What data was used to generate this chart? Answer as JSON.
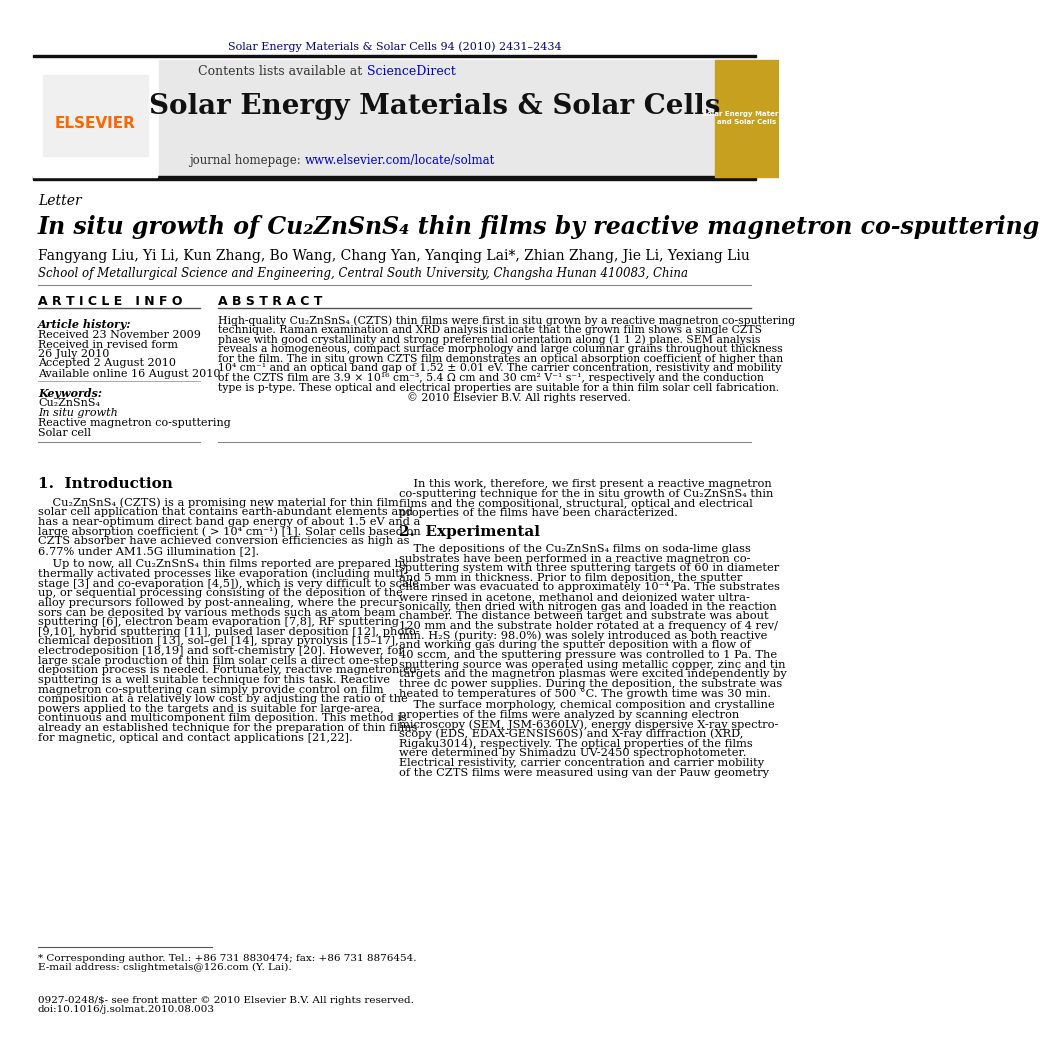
{
  "page_bg": "#ffffff",
  "top_journal_ref": "Solar Energy Materials & Solar Cells 94 (2010) 2431–2434",
  "top_journal_ref_color": "#00008B",
  "header_bg": "#e8e8e8",
  "journal_name": "Solar Energy Materials & Solar Cells",
  "journal_url_color": "#0000CD",
  "letter_label": "Letter",
  "article_title": "In situ growth of Cu₂ZnSnS₄ thin films by reactive magnetron co-sputtering",
  "authors": "Fangyang Liu, Yi Li, Kun Zhang, Bo Wang, Chang Yan, Yanqing Lai*, Zhian Zhang, Jie Li, Yexiang Liu",
  "affiliation": "School of Metallurgical Science and Engineering, Central South University, Changsha Hunan 410083, China",
  "article_info_header": "A R T I C L E   I N F O",
  "abstract_header": "A B S T R A C T",
  "article_history_label": "Article history:",
  "received": "Received 23 November 2009",
  "received_revised": "Received in revised form",
  "revised_date": "26 July 2010",
  "accepted": "Accepted 2 August 2010",
  "available": "Available online 16 August 2010",
  "keywords_label": "Keywords:",
  "keyword1": "Cu₂ZnSnS₄",
  "keyword2": "In situ growth",
  "keyword3": "Reactive magnetron co-sputtering",
  "keyword4": "Solar cell",
  "intro_header": "1.  Introduction",
  "experimental_header": "2.  Experimental",
  "elsevier_color": "#FF6600",
  "link_color": "#0000CD",
  "abstract_lines": [
    "High-quality Cu₂ZnSnS₄ (CZTS) thin films were first in situ grown by a reactive magnetron co-sputtering",
    "technique. Raman examination and XRD analysis indicate that the grown film shows a single CZTS",
    "phase with good crystallinity and strong preferential orientation along (1 1 2) plane. SEM analysis",
    "reveals a homogeneous, compact surface morphology and large columnar grains throughout thickness",
    "for the film. The in situ grown CZTS film demonstrates an optical absorption coefficient of higher than",
    "10⁴ cm⁻¹ and an optical band gap of 1.52 ± 0.01 eV. The carrier concentration, resistivity and mobility",
    "of the CZTS film are 3.9 × 10¹⁶ cm⁻³, 5.4 Ω cm and 30 cm² V⁻¹ s⁻¹, respectively and the conduction",
    "type is p-type. These optical and electrical properties are suitable for a thin film solar cell fabrication.",
    "                                                      © 2010 Elsevier B.V. All rights reserved."
  ],
  "intro1_lines": [
    "    Cu₂ZnSnS₄ (CZTS) is a promising new material for thin film",
    "solar cell application that contains earth-abundant elements and",
    "has a near-optimum direct band gap energy of about 1.5 eV and a",
    "large absorption coefficient ( > 10⁴ cm⁻¹) [1]. Solar cells based on",
    "CZTS absorber have achieved conversion efficiencies as high as",
    "6.77% under AM1.5G illumination [2]."
  ],
  "intro2_lines": [
    "    Up to now, all Cu₂ZnSnS₄ thin films reported are prepared by",
    "thermally activated processes like evaporation (including multi-",
    "stage [3] and co-evaporation [4,5]), which is very difficult to scale",
    "up, or sequential processing consisting of the deposition of the",
    "alloy precursors followed by post-annealing, where the precur-",
    "sors can be deposited by various methods such as atom beam",
    "sputtering [6], electron beam evaporation [7,8], RF sputtering",
    "[9,10], hybrid sputtering [11], pulsed laser deposition [12], photo-",
    "chemical deposition [13], sol–gel [14], spray pyrolysis [15–17],",
    "electrodeposition [18,19] and soft-chemistry [20]. However, for",
    "large scale production of thin film solar cells a direct one-step",
    "deposition process is needed. Fortunately, reactive magnetron co-",
    "sputtering is a well suitable technique for this task. Reactive",
    "magnetron co-sputtering can simply provide control on film",
    "composition at a relatively low cost by adjusting the ratio of the",
    "powers applied to the targets and is suitable for large-area,",
    "continuous and multicomponent film deposition. This method is",
    "already an established technique for the preparation of thin films",
    "for magnetic, optical and contact applications [21,22]."
  ],
  "right_intro_lines": [
    "    In this work, therefore, we first present a reactive magnetron",
    "co-sputtering technique for the in situ growth of Cu₂ZnSnS₄ thin",
    "films and the compositional, structural, optical and electrical",
    "properties of the films have been characterized."
  ],
  "exp_lines": [
    "    The depositions of the Cu₂ZnSnS₄ films on soda-lime glass",
    "substrates have been performed in a reactive magnetron co-",
    "sputtering system with three sputtering targets of 60 in diameter",
    "and 5 mm in thickness. Prior to film deposition, the sputter",
    "chamber was evacuated to approximately 10⁻⁴ Pa. The substrates",
    "were rinsed in acetone, methanol and deionized water ultra-",
    "sonically, then dried with nitrogen gas and loaded in the reaction",
    "chamber. The distance between target and substrate was about",
    "120 mm and the substrate holder rotated at a frequency of 4 rev/",
    "min. H₂S (purity: 98.0%) was solely introduced as both reactive",
    "and working gas during the sputter deposition with a flow of",
    "40 sccm, and the sputtering pressure was controlled to 1 Pa. The",
    "sputtering source was operated using metallic copper, zinc and tin",
    "targets and the magnetron plasmas were excited independently by",
    "three dc power supplies. During the deposition, the substrate was",
    "heated to temperatures of 500 °C. The growth time was 30 min."
  ],
  "surface_lines": [
    "    The surface morphology, chemical composition and crystalline",
    "properties of the films were analyzed by scanning electron",
    "microscopy (SEM, JSM-6360LV), energy dispersive X-ray spectro-",
    "scopy (EDS, EDAX-GENSIS60S) and X-ray diffraction (XRD,",
    "Rigaku3014), respectively. The optical properties of the films",
    "were determined by Shimadzu UV-2450 spectrophotometer.",
    "Electrical resistivity, carrier concentration and carrier mobility",
    "of the CZTS films were measured using van der Pauw geometry"
  ],
  "footnote_lines": [
    "* Corresponding author. Tel.: +86 731 8830474; fax: +86 731 8876454.",
    "E-mail address: cslightmetals@126.com (Y. Lai)."
  ],
  "copyright_lines": [
    "0927-0248/$- see front matter © 2010 Elsevier B.V. All rights reserved.",
    "doi:10.1016/j.solmat.2010.08.003"
  ]
}
